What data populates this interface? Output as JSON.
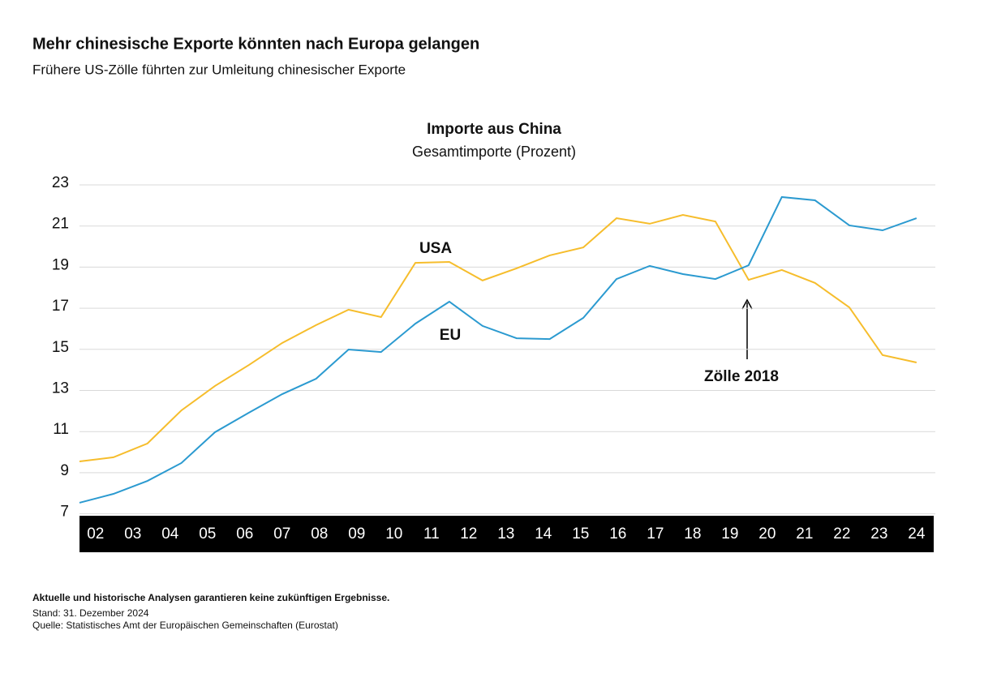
{
  "header": {
    "title": "Mehr chinesische Exporte könnten nach Europa gelangen",
    "subtitle": "Frühere US-Zölle führten zur Umleitung chinesischer Exporte"
  },
  "chart_data": {
    "type": "line",
    "title": "Importe aus China",
    "subtitle": "Gesamtimporte (Prozent)",
    "x": [
      2001.57,
      2002.48,
      2003.39,
      2004.3,
      2005.2,
      2006.11,
      2007.0,
      2007.91,
      2008.78,
      2009.65,
      2010.57,
      2011.48,
      2012.37,
      2013.28,
      2014.17,
      2015.07,
      2015.96,
      2016.85,
      2017.74,
      2018.61,
      2019.5,
      2020.39,
      2021.28,
      2022.2,
      2023.09,
      2024.0
    ],
    "xlim": [
      2001.57,
      2024.46
    ],
    "xticks": [
      {
        "value": 2002,
        "label": "02"
      },
      {
        "value": 2003,
        "label": "03"
      },
      {
        "value": 2004,
        "label": "04"
      },
      {
        "value": 2005,
        "label": "05"
      },
      {
        "value": 2006,
        "label": "06"
      },
      {
        "value": 2007,
        "label": "07"
      },
      {
        "value": 2008,
        "label": "08"
      },
      {
        "value": 2009,
        "label": "09"
      },
      {
        "value": 2010,
        "label": "10"
      },
      {
        "value": 2011,
        "label": "11"
      },
      {
        "value": 2012,
        "label": "12"
      },
      {
        "value": 2013,
        "label": "13"
      },
      {
        "value": 2014,
        "label": "14"
      },
      {
        "value": 2015,
        "label": "15"
      },
      {
        "value": 2016,
        "label": "16"
      },
      {
        "value": 2017,
        "label": "17"
      },
      {
        "value": 2018,
        "label": "18"
      },
      {
        "value": 2019,
        "label": "19"
      },
      {
        "value": 2020,
        "label": "20"
      },
      {
        "value": 2021,
        "label": "21"
      },
      {
        "value": 2022,
        "label": "22"
      },
      {
        "value": 2023,
        "label": "23"
      },
      {
        "value": 2024,
        "label": "24"
      }
    ],
    "ylim": [
      7,
      23
    ],
    "yticks": [
      7,
      9,
      11,
      13,
      15,
      17,
      19,
      21,
      23
    ],
    "grid": true,
    "series": [
      {
        "name": "USA",
        "color": "#f6bd2c",
        "values": [
          9.55,
          9.75,
          10.42,
          12.03,
          13.22,
          14.24,
          15.31,
          16.18,
          16.93,
          16.57,
          19.21,
          19.25,
          18.35,
          18.94,
          19.57,
          19.96,
          21.38,
          21.11,
          21.54,
          21.22,
          18.38,
          18.86,
          18.23,
          17.04,
          14.72,
          14.36
        ]
      },
      {
        "name": "EU",
        "color": "#2b9ad0",
        "values": [
          7.54,
          7.97,
          8.6,
          9.47,
          10.97,
          11.92,
          12.82,
          13.57,
          14.99,
          14.87,
          16.25,
          17.32,
          16.14,
          15.54,
          15.5,
          16.53,
          18.42,
          19.06,
          18.66,
          18.42,
          19.09,
          22.41,
          22.25,
          21.03,
          20.79,
          21.38
        ]
      }
    ],
    "annotations": [
      "Zölle 2018"
    ]
  },
  "footer": {
    "disclaimer": "Aktuelle und historische Analysen garantieren keine zukünftigen Ergebnisse.",
    "date": "Stand: 31. Dezember 2024",
    "source": "Quelle: Statistisches Amt der Europäischen Gemeinschaften (Eurostat)"
  }
}
